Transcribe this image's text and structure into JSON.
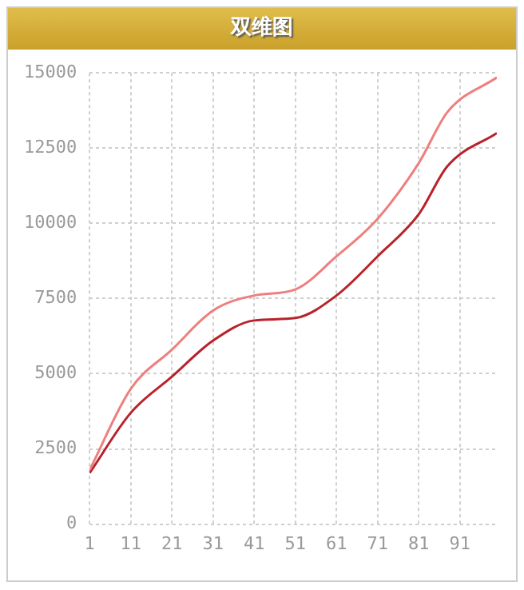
{
  "chart_data": {
    "type": "line",
    "title": "双维图",
    "x": [
      1,
      11,
      21,
      31,
      41,
      51,
      61,
      71,
      81,
      88,
      100
    ],
    "xlim": [
      1,
      100
    ],
    "xticks": [
      1,
      11,
      21,
      31,
      41,
      51,
      61,
      71,
      81,
      91
    ],
    "ylim": [
      0,
      15000
    ],
    "yticks": [
      0,
      2500,
      5000,
      7500,
      10000,
      12500,
      15000
    ],
    "grid": true,
    "legend": false,
    "marker": "none",
    "line_style": "solid",
    "series": [
      {
        "color": "#ee7f7f",
        "values": [
          1800,
          4500,
          5800,
          7100,
          7600,
          7800,
          8900,
          10150,
          12000,
          13700,
          14850
        ]
      },
      {
        "color": "#b8232b",
        "values": [
          1700,
          3700,
          4900,
          6100,
          6770,
          6850,
          7600,
          8900,
          10300,
          11900,
          13000
        ]
      }
    ]
  }
}
